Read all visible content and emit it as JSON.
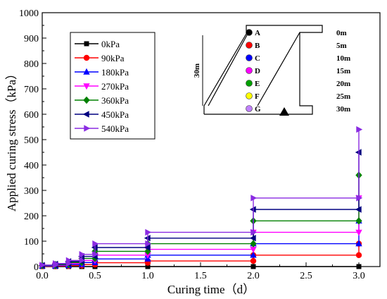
{
  "chart_data": {
    "type": "line",
    "xlabel": "Curing time（d）",
    "ylabel": "Applied curing stress（kPa）",
    "xlim": [
      0.0,
      3.2
    ],
    "ylim": [
      0,
      1000
    ],
    "xticks": [
      "0.0",
      "0.5",
      "1.0",
      "1.5",
      "2.0",
      "2.5",
      "3.0"
    ],
    "xtick_values": [
      0.0,
      0.5,
      1.0,
      1.5,
      2.0,
      2.5,
      3.0
    ],
    "yticks": [
      "0",
      "100",
      "200",
      "300",
      "400",
      "500",
      "600",
      "700",
      "800",
      "900",
      "1000"
    ],
    "ytick_values": [
      0,
      100,
      200,
      300,
      400,
      500,
      600,
      700,
      800,
      900,
      1000
    ],
    "legend_position": "top-left",
    "series": [
      {
        "name": "0kPa",
        "color": "#000000",
        "marker": "square",
        "x": [
          0,
          0.125,
          0.25,
          0.375,
          0.5,
          1.0,
          2.0,
          3.0
        ],
        "y": [
          0,
          0,
          0,
          0,
          0,
          0,
          0,
          0
        ]
      },
      {
        "name": "90kPa",
        "color": "#ff0000",
        "marker": "circle",
        "x": [
          0,
          0.125,
          0.25,
          0.375,
          0.5,
          1.0,
          2.0,
          3.0
        ],
        "y": [
          1,
          2,
          4,
          8,
          15,
          22,
          45,
          90
        ]
      },
      {
        "name": "180kPa",
        "color": "#0000ff",
        "marker": "triangle-up",
        "x": [
          0,
          0.125,
          0.25,
          0.375,
          0.5,
          1.0,
          2.0,
          3.0
        ],
        "y": [
          2,
          4,
          8,
          16,
          30,
          45,
          90,
          180
        ]
      },
      {
        "name": "270kPa",
        "color": "#ff00ff",
        "marker": "triangle-down",
        "x": [
          0,
          0.125,
          0.25,
          0.375,
          0.5,
          1.0,
          2.0,
          3.0
        ],
        "y": [
          3,
          6,
          12,
          24,
          45,
          68,
          135,
          270
        ]
      },
      {
        "name": "360kPa",
        "color": "#008000",
        "marker": "diamond",
        "x": [
          0,
          0.125,
          0.25,
          0.375,
          0.5,
          1.0,
          2.0,
          3.0
        ],
        "y": [
          4,
          8,
          16,
          32,
          60,
          90,
          180,
          360
        ]
      },
      {
        "name": "450kPa",
        "color": "#000080",
        "marker": "triangle-left",
        "x": [
          0,
          0.125,
          0.25,
          0.375,
          0.5,
          1.0,
          2.0,
          3.0
        ],
        "y": [
          5,
          10,
          20,
          40,
          75,
          112,
          225,
          450
        ]
      },
      {
        "name": "540kPa",
        "color": "#8a2be2",
        "marker": "triangle-right",
        "x": [
          0,
          0.125,
          0.25,
          0.375,
          0.5,
          1.0,
          2.0,
          3.0
        ],
        "y": [
          6,
          12,
          24,
          48,
          90,
          135,
          270,
          540
        ]
      }
    ],
    "inset": {
      "height_label": "30m",
      "points": [
        {
          "label": "A",
          "color": "#000000",
          "depth": "0m"
        },
        {
          "label": "B",
          "color": "#ff0000",
          "depth": "5m"
        },
        {
          "label": "C",
          "color": "#0000ff",
          "depth": "10m"
        },
        {
          "label": "D",
          "color": "#ff00ff",
          "depth": "15m"
        },
        {
          "label": "E",
          "color": "#00a000",
          "depth": "20m"
        },
        {
          "label": "F",
          "color": "#ffff00",
          "depth": "25m"
        },
        {
          "label": "G",
          "color": "#c080ff",
          "depth": "30m"
        }
      ]
    }
  }
}
